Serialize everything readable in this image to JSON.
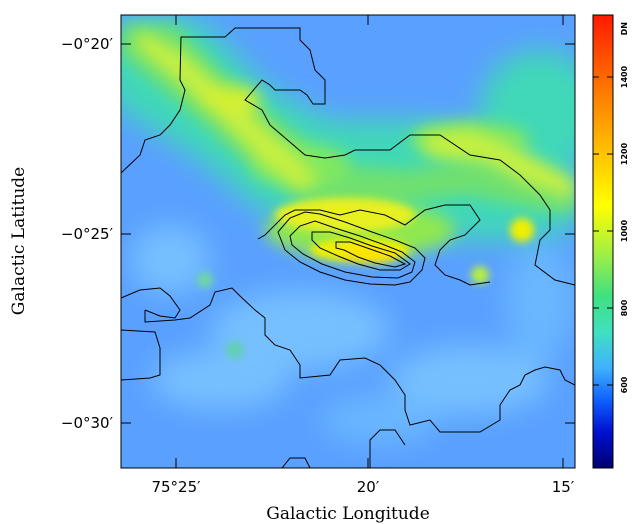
{
  "axes": {
    "x_label": "Galactic Longitude",
    "y_label": "Galactic Latitude",
    "x_ticks": [
      "75°25′",
      "20′",
      "15′"
    ],
    "y_ticks": [
      "−0°20′",
      "−0°25′",
      "−0°30′"
    ]
  },
  "colorbar": {
    "unit": "DN",
    "ticks": [
      "600",
      "800",
      "1000",
      "1200",
      "1400"
    ],
    "range": [
      430,
      1520
    ]
  },
  "colors": {
    "background": "#5aa0ff",
    "contour": "#000000"
  }
}
